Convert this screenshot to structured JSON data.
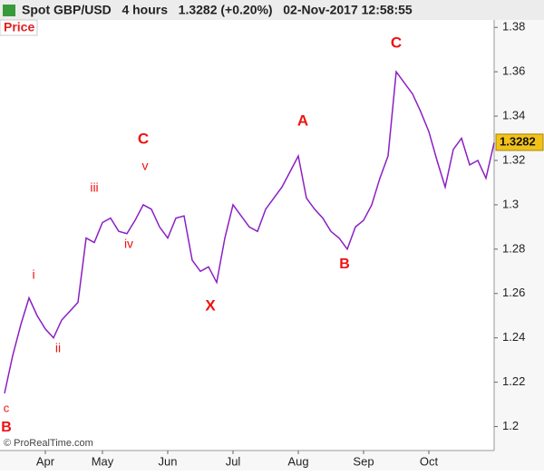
{
  "chart_data": {
    "type": "line",
    "title": "Spot GBP/USD   4 hours   1.3282 (+0.20%)   02-Nov-2017 12:58:55",
    "panel_label": "Price",
    "credit": "© ProRealTime.com",
    "last_value": 1.3282,
    "color": "#8b1fc4",
    "categories": [
      null,
      null,
      null,
      null,
      null,
      "Apr",
      null,
      null,
      null,
      null,
      null,
      null,
      "May",
      null,
      null,
      null,
      null,
      null,
      null,
      null,
      "Jun",
      null,
      null,
      null,
      null,
      null,
      null,
      null,
      "Jul",
      null,
      null,
      null,
      null,
      null,
      null,
      null,
      "Aug",
      null,
      null,
      null,
      null,
      null,
      null,
      null,
      "Sep",
      null,
      null,
      null,
      null,
      null,
      null,
      null,
      "Oct",
      null,
      null,
      null,
      null,
      null,
      null,
      null,
      null
    ],
    "values": [
      1.215,
      1.232,
      1.246,
      1.258,
      1.25,
      1.244,
      1.24,
      1.248,
      1.252,
      1.256,
      1.285,
      1.283,
      1.292,
      1.294,
      1.288,
      1.287,
      1.293,
      1.3,
      1.298,
      1.29,
      1.285,
      1.294,
      1.295,
      1.275,
      1.27,
      1.272,
      1.265,
      1.285,
      1.3,
      1.295,
      1.29,
      1.288,
      1.298,
      1.303,
      1.308,
      1.315,
      1.322,
      1.303,
      1.298,
      1.294,
      1.288,
      1.285,
      1.28,
      1.29,
      1.293,
      1.3,
      1.312,
      1.322,
      1.36,
      1.355,
      1.35,
      1.342,
      1.333,
      1.32,
      1.308,
      1.325,
      1.33,
      1.318,
      1.32,
      1.312,
      1.328
    ],
    "ylim": [
      1.19,
      1.385
    ],
    "yticks": [
      1.2,
      1.22,
      1.24,
      1.26,
      1.28,
      1.3,
      1.32,
      1.34,
      1.36,
      1.38
    ],
    "annotations": [
      "B",
      "c",
      "i",
      "ii",
      "iii",
      "iv",
      "v",
      "C",
      "X",
      "A",
      "B",
      "C"
    ],
    "annotation_color": "#ee1111"
  }
}
